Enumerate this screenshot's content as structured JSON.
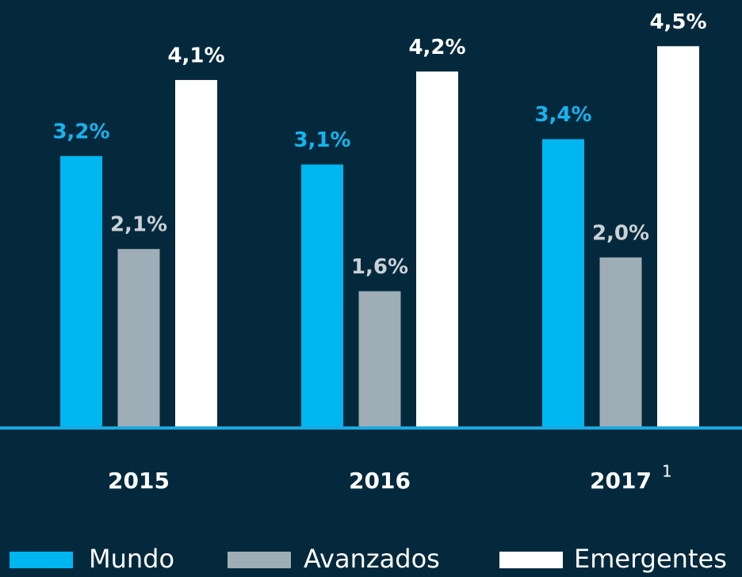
{
  "chart_data": {
    "type": "bar",
    "categories": [
      "2015",
      "2016",
      "2017"
    ],
    "category_superscripts": [
      null,
      null,
      "1"
    ],
    "series": [
      {
        "name": "Mundo",
        "color": "#00b6f1",
        "label_color": "#17b3ef",
        "values": [
          3.2,
          3.1,
          3.4
        ],
        "value_labels": [
          "3,2%",
          "3,1%",
          "3,4%"
        ]
      },
      {
        "name": "Avanzados",
        "color": "#9eadb6",
        "label_color": "#c9d1d6",
        "values": [
          2.1,
          1.6,
          2.0
        ],
        "value_labels": [
          "2,1%",
          "1,6%",
          "2,0%"
        ]
      },
      {
        "name": "Emergentes",
        "color": "#ffffff",
        "label_color": "#ffffff",
        "values": [
          4.1,
          4.2,
          4.5
        ],
        "value_labels": [
          "4,1%",
          "4,2%",
          "4,5%"
        ]
      }
    ],
    "ylim": [
      0,
      5
    ],
    "background": "#05293c",
    "baseline_color": "#1aa9e0"
  }
}
